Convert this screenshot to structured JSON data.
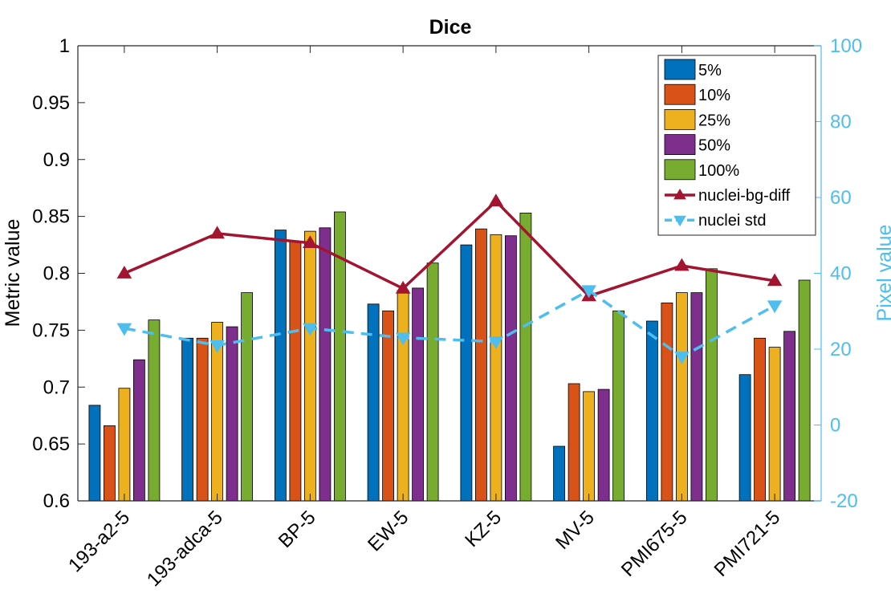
{
  "chart_data": {
    "type": "bar",
    "title": "Dice",
    "ylabel": "Metric value",
    "ylabel_right": "Pixel value",
    "ylim": [
      0.6,
      1.0
    ],
    "ylim_right": [
      -20,
      100
    ],
    "yticks": [
      "0.6",
      "0.65",
      "0.7",
      "0.75",
      "0.8",
      "0.85",
      "0.9",
      "0.95",
      "1"
    ],
    "yticks_right": [
      "-20",
      "0",
      "20",
      "40",
      "60",
      "80",
      "100"
    ],
    "categories": [
      "193-a2-5",
      "193-adca-5",
      "BP-5",
      "EW-5",
      "KZ-5",
      "MV-5",
      "PMI675-5",
      "PMI721-5"
    ],
    "series": [
      {
        "name": "5%",
        "color": "#0072BD",
        "values": [
          0.684,
          0.743,
          0.838,
          0.773,
          0.825,
          0.648,
          0.758,
          0.711
        ]
      },
      {
        "name": "10%",
        "color": "#D95319",
        "values": [
          0.666,
          0.743,
          0.828,
          0.767,
          0.839,
          0.703,
          0.774,
          0.743
        ]
      },
      {
        "name": "25%",
        "color": "#EDB120",
        "values": [
          0.699,
          0.757,
          0.837,
          0.785,
          0.834,
          0.696,
          0.783,
          0.735
        ]
      },
      {
        "name": "50%",
        "color": "#7E2F8E",
        "values": [
          0.724,
          0.753,
          0.84,
          0.787,
          0.833,
          0.698,
          0.783,
          0.749
        ]
      },
      {
        "name": "100%",
        "color": "#77AC30",
        "values": [
          0.759,
          0.783,
          0.854,
          0.809,
          0.853,
          0.767,
          0.804,
          0.794
        ]
      }
    ],
    "lines": [
      {
        "name": "nuclei-bg-diff",
        "color": "#A2142F",
        "axis": "right",
        "style": "solid",
        "marker": "triangle-up",
        "values": [
          40,
          50.5,
          48,
          36,
          59,
          34,
          42,
          38
        ]
      },
      {
        "name": "nuclei std",
        "color": "#4DBEEE",
        "axis": "right",
        "style": "dashed",
        "marker": "triangle-down",
        "values": [
          25.5,
          21,
          25.5,
          23,
          22,
          35.5,
          18,
          31.5
        ]
      }
    ],
    "legend_position": "top-right",
    "grid": false
  }
}
